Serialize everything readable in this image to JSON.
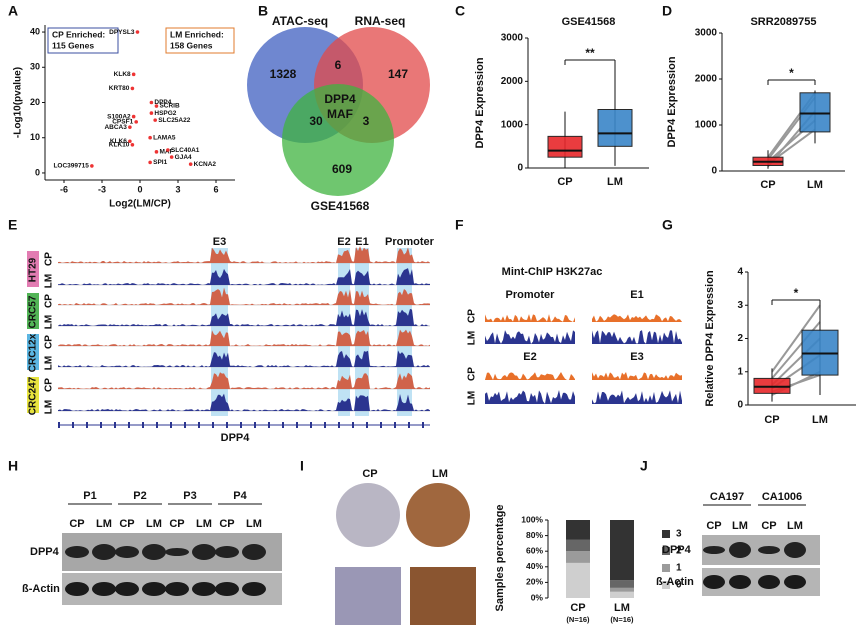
{
  "panels": {
    "A": {
      "letter": "A",
      "type": "volcano",
      "ylabel": "-Log10(pvalue)",
      "xlabel": "Log2(LM/CP)",
      "xlim": [
        -7.5,
        7.5
      ],
      "xticks": [
        -6,
        -3,
        0,
        3,
        6
      ],
      "ylim": [
        -2,
        42
      ],
      "yticks": [
        0,
        10,
        20,
        30,
        40
      ],
      "cp_box": [
        "CP Enriched:",
        "115 Genes"
      ],
      "lm_box": [
        "LM Enriched:",
        "158 Genes"
      ],
      "genes": [
        {
          "label": "DPYSL3",
          "x": -0.2,
          "y": 40
        },
        {
          "label": "KLK8",
          "x": -0.5,
          "y": 28
        },
        {
          "label": "KRT80",
          "x": -0.6,
          "y": 24
        },
        {
          "label": "DPP4",
          "x": 0.9,
          "y": 20
        },
        {
          "label": "SCRIB",
          "x": 1.3,
          "y": 19
        },
        {
          "label": "HSPG2",
          "x": 0.9,
          "y": 17
        },
        {
          "label": "S100A2",
          "x": -0.5,
          "y": 16
        },
        {
          "label": "SLC25A22",
          "x": 1.2,
          "y": 15
        },
        {
          "label": "CPSF1",
          "x": -0.3,
          "y": 14.5
        },
        {
          "label": "ABCA3",
          "x": -0.8,
          "y": 13
        },
        {
          "label": "LAMA5",
          "x": 0.8,
          "y": 10
        },
        {
          "label": "KLK6",
          "x": -0.8,
          "y": 9
        },
        {
          "label": "KLK10",
          "x": -0.6,
          "y": 8
        },
        {
          "label": "MAF",
          "x": 1.3,
          "y": 6
        },
        {
          "label": "SLC40A1",
          "x": 2.2,
          "y": 6.5
        },
        {
          "label": "GJA4",
          "x": 2.5,
          "y": 4.5
        },
        {
          "label": "SPI1",
          "x": 0.8,
          "y": 3
        },
        {
          "label": "KCNA2",
          "x": 4,
          "y": 2.5
        },
        {
          "label": "LOC399715",
          "x": -3.8,
          "y": 2
        }
      ]
    },
    "B": {
      "letter": "B",
      "sets": [
        "ATAC-seq",
        "RNA-seq",
        "GSE41568"
      ],
      "regions": {
        "atac_only": "1328",
        "rna_only": "147",
        "gse_only": "609",
        "atac_rna": "6",
        "atac_gse": "30",
        "rna_gse": "3",
        "all": [
          "DPP4",
          "MAF"
        ]
      }
    },
    "C": {
      "letter": "C",
      "type": "box",
      "title": "GSE41568",
      "ylabel": "DPP4 Expression",
      "ylim": [
        0,
        3000
      ],
      "yticks": [
        0,
        1000,
        2000,
        3000
      ],
      "categories": [
        "CP",
        "LM"
      ],
      "significance": "**",
      "boxes": [
        {
          "color": "#e8282b",
          "whisker_low": 0,
          "q1": 250,
          "median": 400,
          "q3": 730,
          "whisker_high": 1300
        },
        {
          "color": "#3a86c8",
          "whisker_low": 50,
          "q1": 500,
          "median": 800,
          "q3": 1350,
          "whisker_high": 2400
        }
      ]
    },
    "D": {
      "letter": "D",
      "type": "box",
      "title": "SRR2089755",
      "ylabel": "DPP4 Expression",
      "ylim": [
        0,
        3000
      ],
      "yticks": [
        0,
        1000,
        2000,
        3000
      ],
      "categories": [
        "CP",
        "LM"
      ],
      "significance": "*",
      "boxes": [
        {
          "color": "#e8282b",
          "whisker_low": 50,
          "q1": 120,
          "median": 200,
          "q3": 300,
          "whisker_high": 450
        },
        {
          "color": "#3a86c8",
          "whisker_low": 600,
          "q1": 850,
          "median": 1250,
          "q3": 1700,
          "whisker_high": 1750
        }
      ],
      "pairs": {
        "cp": [
          150,
          250,
          100,
          300,
          200
        ],
        "lm": [
          900,
          1600,
          1300,
          1700,
          1100
        ]
      }
    },
    "E": {
      "letter": "E",
      "regions": [
        "E3",
        "E2",
        "E1",
        "Promoter"
      ],
      "cell_lines": [
        {
          "name": "HT29",
          "color": "#e27cb2"
        },
        {
          "name": "CRC57",
          "color": "#52b556"
        },
        {
          "name": "CRC12x",
          "color": "#5cb6e2"
        },
        {
          "name": "CRC247",
          "color": "#e7e33e"
        }
      ],
      "conditions": [
        "CP",
        "LM"
      ],
      "gene": "DPP4"
    },
    "F": {
      "letter": "F",
      "title": "Mint-ChIP H3K27ac",
      "regions": [
        "Promoter",
        "E1",
        "E2",
        "E3"
      ],
      "conditions": [
        "CP",
        "LM"
      ]
    },
    "G": {
      "letter": "G",
      "type": "box",
      "ylabel": "Relative DPP4 Expression",
      "ylim": [
        0,
        4
      ],
      "yticks": [
        0,
        1,
        2,
        3,
        4
      ],
      "categories": [
        "CP",
        "LM"
      ],
      "significance": "*",
      "boxes": [
        {
          "color": "#e8282b",
          "whisker_low": 0.1,
          "q1": 0.35,
          "median": 0.55,
          "q3": 0.8,
          "whisker_high": 1.1
        },
        {
          "color": "#3a86c8",
          "whisker_low": 0.3,
          "q1": 0.9,
          "median": 1.55,
          "q3": 2.25,
          "whisker_high": 3.1
        }
      ],
      "pairs": {
        "cp": [
          0.3,
          0.5,
          0.6,
          0.8,
          1.0,
          0.4
        ],
        "lm": [
          1.0,
          1.5,
          2.0,
          2.5,
          3.0,
          0.9
        ]
      }
    },
    "H": {
      "letter": "H",
      "patients": [
        "P1",
        "P2",
        "P3",
        "P4"
      ],
      "conditions": [
        "CP",
        "LM"
      ],
      "rows": [
        "DPP4",
        "ß-Actin"
      ]
    },
    "I": {
      "letter": "I",
      "images": [
        "CP",
        "LM"
      ],
      "type": "stacked_bar",
      "ylabel": "Samples percentage",
      "ylim": [
        0,
        100
      ],
      "yticks": [
        {
          "value": 0,
          "label": "0%"
        },
        {
          "value": 20,
          "label": "20%"
        },
        {
          "value": 40,
          "label": "40%"
        },
        {
          "value": 60,
          "label": "60%"
        },
        {
          "value": 80,
          "label": "80%"
        },
        {
          "value": 100,
          "label": "100%"
        }
      ],
      "categories": [
        "CP",
        "LM"
      ],
      "n_labels": [
        "(N=16)",
        "(N=16)"
      ],
      "series": [
        {
          "name": "0",
          "color": "#cfcfcf",
          "values": [
            45,
            8
          ]
        },
        {
          "name": "1",
          "color": "#9b9b9b",
          "values": [
            15,
            5
          ]
        },
        {
          "name": "2",
          "color": "#666666",
          "values": [
            15,
            10
          ]
        },
        {
          "name": "3",
          "color": "#333333",
          "values": [
            25,
            77
          ]
        }
      ]
    },
    "J": {
      "letter": "J",
      "samples": [
        "CA197",
        "CA1006"
      ],
      "conditions": [
        "CP",
        "LM"
      ],
      "rows": [
        "DPP4",
        "ß-Actin"
      ]
    }
  }
}
